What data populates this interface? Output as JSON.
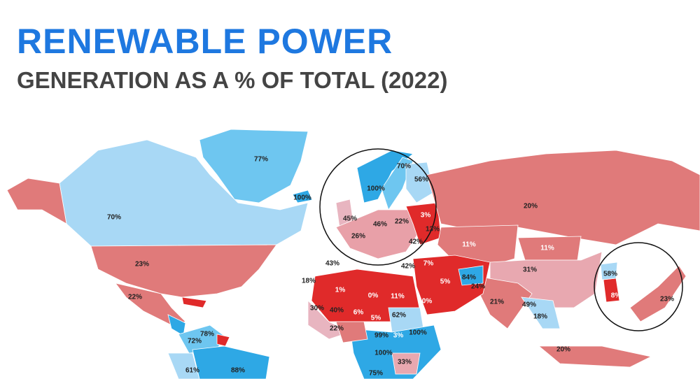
{
  "header": {
    "title": "RENEWABLE POWER",
    "subtitle": "GENERATION AS A % OF TOTAL (2022)"
  },
  "labels": [
    "77%",
    "70%",
    "23%",
    "22%",
    "20%",
    "70%",
    "56%",
    "100%",
    "100%",
    "45%",
    "46%",
    "22%",
    "3%",
    "13%",
    "26%",
    "42%",
    "42%",
    "11%",
    "11%",
    "31%",
    "58%",
    "8%",
    "23%",
    "84%",
    "24%",
    "21%",
    "49%",
    "18%",
    "20%",
    "1%",
    "0%",
    "11%",
    "0%",
    "5%",
    "43%",
    "18%",
    "30%",
    "40%",
    "6%",
    "5%",
    "62%",
    "22%",
    "100%",
    "99%",
    "3%",
    "100%",
    "33%",
    "75%",
    "78%",
    "72%",
    "61%",
    "88%",
    "7%"
  ]
}
